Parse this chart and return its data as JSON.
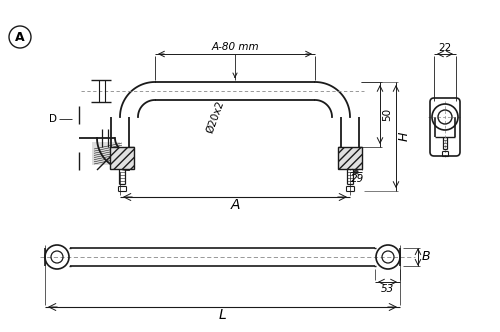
{
  "background_color": "#ffffff",
  "line_color": "#1a1a1a",
  "dim_color": "#1a1a1a",
  "centerline_color": "#888888",
  "circle_label": "A",
  "dim_A80": "A-80 mm",
  "dim_22": "22",
  "dim_D": "D",
  "dim_phi": "Ø20x2",
  "dim_50": "50",
  "dim_H": "H",
  "dim_29": "29",
  "dim_A": "A",
  "dim_B": "B",
  "dim_53": "53",
  "dim_L": "L"
}
